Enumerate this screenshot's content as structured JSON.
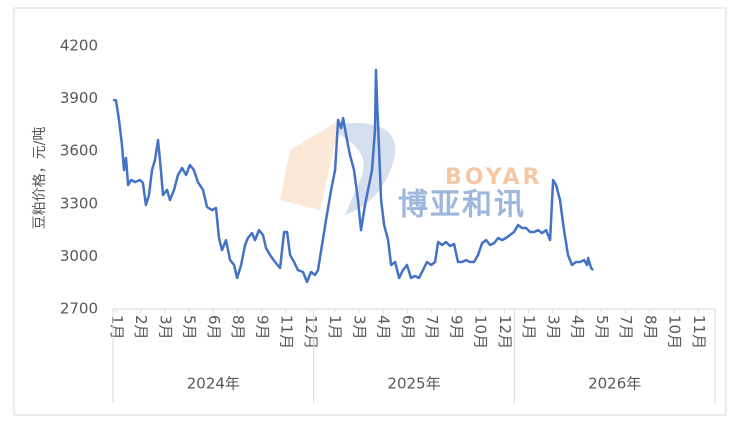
{
  "chart_data": {
    "type": "line",
    "y_label": "豆粕价格，元/吨",
    "watermark": {
      "en": "BOYAR",
      "cn": "博亚和讯"
    },
    "xlim": [
      0,
      36
    ],
    "xticks": [
      {
        "value": 0.2,
        "label": "1月"
      },
      {
        "value": 1.65,
        "label": "2月"
      },
      {
        "value": 3.1,
        "label": "3月"
      },
      {
        "value": 4.55,
        "label": "5月"
      },
      {
        "value": 6.0,
        "label": "6月"
      },
      {
        "value": 7.45,
        "label": "8月"
      },
      {
        "value": 8.9,
        "label": "9月"
      },
      {
        "value": 10.35,
        "label": "11月"
      },
      {
        "value": 11.8,
        "label": "12月"
      },
      {
        "value": 13.25,
        "label": "1月"
      },
      {
        "value": 14.7,
        "label": "3月"
      },
      {
        "value": 16.15,
        "label": "4月"
      },
      {
        "value": 17.6,
        "label": "6月"
      },
      {
        "value": 19.05,
        "label": "7月"
      },
      {
        "value": 20.5,
        "label": "9月"
      },
      {
        "value": 21.95,
        "label": "10月"
      },
      {
        "value": 23.4,
        "label": "12月"
      },
      {
        "value": 24.85,
        "label": "1月"
      },
      {
        "value": 26.3,
        "label": "3月"
      },
      {
        "value": 27.75,
        "label": "4月"
      },
      {
        "value": 29.2,
        "label": "5月"
      },
      {
        "value": 30.65,
        "label": "7月"
      },
      {
        "value": 32.1,
        "label": "8月"
      },
      {
        "value": 33.55,
        "label": "10月"
      },
      {
        "value": 35.0,
        "label": "11月"
      }
    ],
    "year_groups": [
      {
        "label": "2024年",
        "range": [
          0,
          12
        ]
      },
      {
        "label": "2025年",
        "range": [
          12,
          24
        ]
      },
      {
        "label": "2026年",
        "range": [
          24,
          36
        ]
      }
    ],
    "ylim": [
      2700,
      4200
    ],
    "yticks": [
      2700,
      3000,
      3300,
      3600,
      3900,
      4200
    ],
    "series": [
      {
        "color": "#4472c4",
        "x": [
          0,
          0.18,
          0.36,
          0.54,
          0.66,
          0.78,
          0.9,
          1.08,
          1.32,
          1.61,
          1.79,
          1.97,
          2.15,
          2.33,
          2.51,
          2.69,
          2.81,
          2.99,
          3.23,
          3.41,
          3.65,
          3.89,
          4.13,
          4.37,
          4.6,
          4.84,
          5.08,
          5.38,
          5.62,
          5.92,
          6.16,
          6.34,
          6.52,
          6.76,
          7,
          7.24,
          7.42,
          7.66,
          7.9,
          8.07,
          8.31,
          8.49,
          8.73,
          8.97,
          9.15,
          9.39,
          9.69,
          9.99,
          10.23,
          10.41,
          10.59,
          10.83,
          11.06,
          11.36,
          11.6,
          11.84,
          12.08,
          12.26,
          12.5,
          12.74,
          13.04,
          13.28,
          13.46,
          13.64,
          13.76,
          13.94,
          14.17,
          14.41,
          14.65,
          14.83,
          15.07,
          15.31,
          15.49,
          15.67,
          15.73,
          15.79,
          15.91,
          16.03,
          16.21,
          16.45,
          16.63,
          16.87,
          17.11,
          17.34,
          17.58,
          17.82,
          18.06,
          18.3,
          18.54,
          18.78,
          19.02,
          19.26,
          19.44,
          19.68,
          19.92,
          20.16,
          20.4,
          20.63,
          20.87,
          21.11,
          21.35,
          21.59,
          21.83,
          22.07,
          22.31,
          22.55,
          22.79,
          23.03,
          23.27,
          23.5,
          23.74,
          23.98,
          24.22,
          24.46,
          24.7,
          24.94,
          25.18,
          25.42,
          25.66,
          25.9,
          26.14,
          26.32,
          26.5,
          26.73,
          26.97,
          27.21,
          27.45,
          27.69,
          27.93,
          28.17,
          28.35,
          28.41,
          28.59,
          28.71
        ],
        "values": [
          3892,
          3890,
          3778,
          3635,
          3493,
          3561,
          3407,
          3436,
          3424,
          3436,
          3419,
          3293,
          3350,
          3493,
          3550,
          3664,
          3550,
          3350,
          3379,
          3321,
          3379,
          3464,
          3504,
          3464,
          3521,
          3493,
          3424,
          3379,
          3282,
          3264,
          3276,
          3105,
          3036,
          3093,
          2979,
          2951,
          2877,
          2951,
          3065,
          3105,
          3133,
          3093,
          3150,
          3122,
          3048,
          3008,
          2968,
          2934,
          3139,
          3139,
          3008,
          2968,
          2922,
          2911,
          2854,
          2911,
          2894,
          2922,
          3065,
          3207,
          3379,
          3493,
          3778,
          3732,
          3789,
          3692,
          3578,
          3493,
          3321,
          3150,
          3293,
          3407,
          3493,
          3721,
          4063,
          3892,
          3607,
          3321,
          3179,
          3093,
          2951,
          2968,
          2877,
          2922,
          2951,
          2877,
          2888,
          2877,
          2922,
          2968,
          2951,
          2968,
          3082,
          3065,
          3082,
          3059,
          3071,
          2968,
          2968,
          2979,
          2968,
          2968,
          3008,
          3076,
          3093,
          3065,
          3076,
          3105,
          3093,
          3105,
          3122,
          3139,
          3179,
          3162,
          3162,
          3139,
          3139,
          3150,
          3133,
          3150,
          3093,
          3436,
          3407,
          3321,
          3150,
          3008,
          2951,
          2968,
          2968,
          2979,
          2951,
          2991,
          2934,
          2922
        ]
      }
    ]
  }
}
